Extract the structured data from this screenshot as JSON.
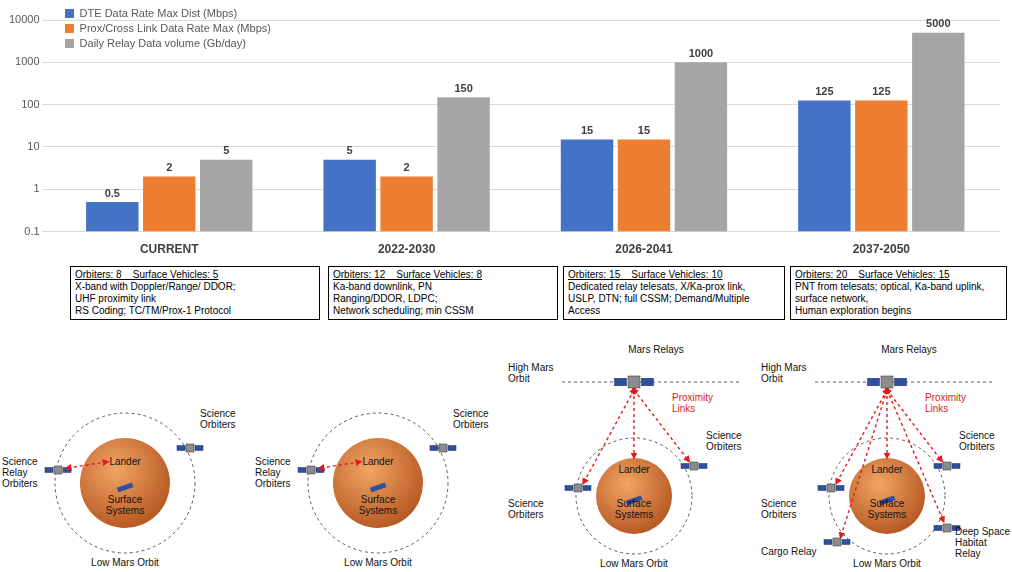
{
  "chart_data": {
    "type": "bar",
    "categories": [
      "CURRENT",
      "2022-2030",
      "2026-2041",
      "2037-2050"
    ],
    "series": [
      {
        "name": "DTE Data Rate Max Dist (Mbps)",
        "color": "#4472c4",
        "values": [
          0.5,
          5,
          15,
          125
        ]
      },
      {
        "name": "Prox/Cross Link Data Rate Max (Mbps)",
        "color": "#ed7d31",
        "values": [
          2,
          2,
          15,
          125
        ]
      },
      {
        "name": "Daily Relay Data volume (Gb/day)",
        "color": "#a5a5a5",
        "values": [
          5,
          150,
          1000,
          5000
        ]
      }
    ],
    "log": "y",
    "ylim": [
      0.1,
      10000
    ],
    "yticks": [
      0.1,
      1,
      10,
      100,
      1000,
      10000
    ],
    "grid": true,
    "legend": "upper left",
    "data_labels": true
  },
  "eras": [
    {
      "lines": [
        "Orbiters: 8    Surface Vehicles: 5",
        "X-band with Doppler/Range/ DDOR;",
        "UHF proximity link",
        "RS Coding; TC/TM/Prox-1 Protocol"
      ]
    },
    {
      "lines": [
        "Orbiters: 12    Surface Vehicles: 8",
        "Ka-band downlink, PN",
        "Ranging/DDOR, LDPC;",
        "Network scheduling; min CSSM"
      ]
    },
    {
      "lines": [
        "Orbiters: 15    Surface Vehicles: 10",
        "Dedicated relay telesats, X/Ka-prox link,",
        "USLP, DTN; full CSSM; Demand/Multiple",
        "Access"
      ]
    },
    {
      "lines": [
        "Orbiters: 20    Surface Vehicles: 15",
        "PNT from telesats; optical, Ka-band uplink,",
        "surface network,",
        "Human exploration begins"
      ]
    }
  ],
  "diagrams": [
    {
      "science_relay_orbiters": "Science Relay Orbiters",
      "science_orbiters": "Science Orbiters",
      "lander": "Lander",
      "surface_systems": "Surface Systems",
      "low_mars_orbit": "Low Mars Orbit"
    },
    {
      "science_relay_orbiters": "Science Relay Orbiters",
      "science_orbiters": "Science Orbiters",
      "lander": "Lander",
      "surface_systems": "Surface Systems",
      "low_mars_orbit": "Low Mars Orbit"
    },
    {
      "high_mars_orbit": "High Mars Orbit",
      "mars_relays": "Mars Relays",
      "proximity_links": "Proximity Links",
      "science_orbiters_left": "Science Orbiters",
      "science_orbiters_right": "Science Orbiters",
      "lander": "Lander",
      "surface_systems": "Surface Systems",
      "low_mars_orbit": "Low Mars Orbit"
    },
    {
      "high_mars_orbit": "High Mars Orbit",
      "mars_relays": "Mars Relays",
      "proximity_links": "Proximity Links",
      "science_orbiters_left": "Science Orbiters",
      "science_orbiters_right": "Science Orbiters",
      "lander": "Lander",
      "surface_systems": "Surface Systems",
      "cargo_relay": "Cargo Relay",
      "deep_space_habitat_relay": "Deep Space Habitat Relay",
      "low_mars_orbit": "Low Mars Orbit"
    }
  ]
}
